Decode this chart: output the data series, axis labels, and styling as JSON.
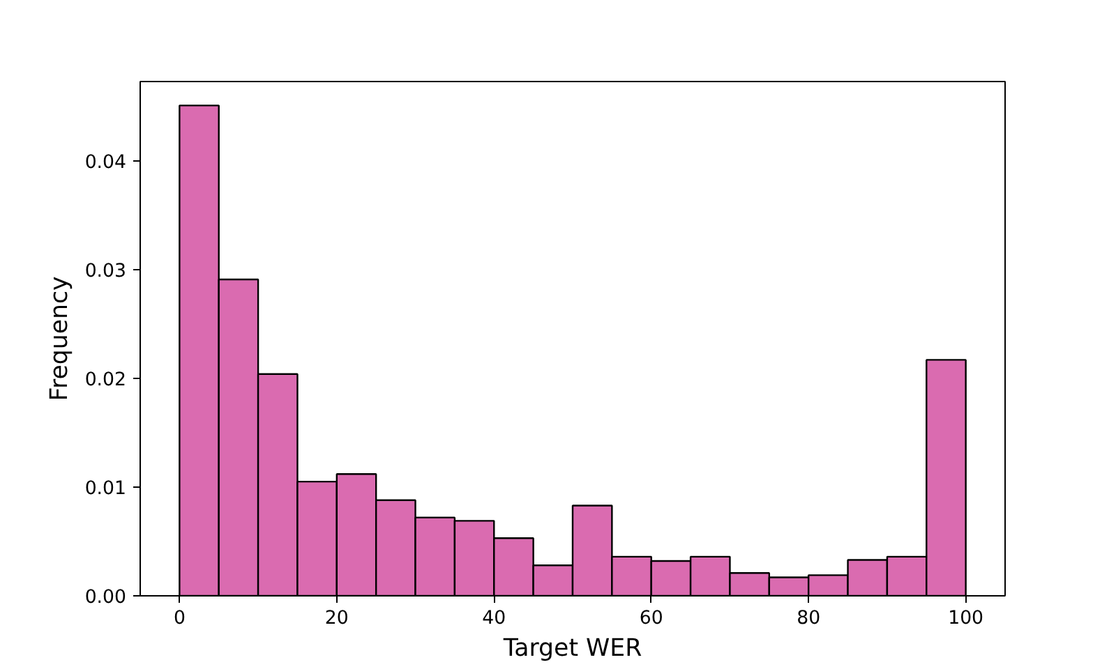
{
  "chart_data": {
    "type": "histogram",
    "xlabel": "Target WER",
    "ylabel": "Frequency",
    "bins": [
      0,
      5,
      10,
      15,
      20,
      25,
      30,
      35,
      40,
      45,
      50,
      55,
      60,
      65,
      70,
      75,
      80,
      85,
      90,
      95,
      100
    ],
    "values": [
      0.0451,
      0.0291,
      0.0204,
      0.0105,
      0.0112,
      0.0088,
      0.0072,
      0.0069,
      0.0053,
      0.0028,
      0.0083,
      0.0036,
      0.0032,
      0.0036,
      0.0021,
      0.0017,
      0.0019,
      0.0033,
      0.0036,
      0.0217
    ],
    "color": "#da6bb0",
    "xlim": [
      -5,
      105
    ],
    "ylim": [
      0,
      0.0473
    ],
    "xticks": [
      0,
      20,
      40,
      60,
      80,
      100
    ],
    "yticks": [
      {
        "value": 0,
        "label": "0.00"
      },
      {
        "value": 0.01,
        "label": "0.01"
      },
      {
        "value": 0.02,
        "label": "0.02"
      },
      {
        "value": 0.03,
        "label": "0.03"
      },
      {
        "value": 0.04,
        "label": "0.04"
      }
    ],
    "grid": false
  }
}
